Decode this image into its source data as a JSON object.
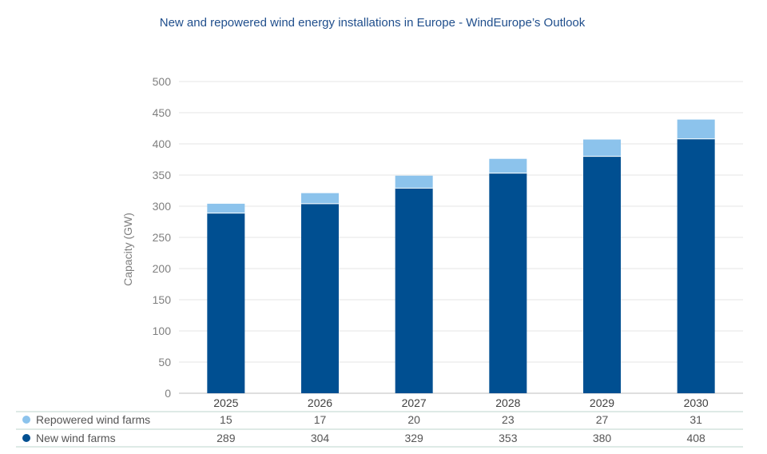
{
  "chart_data": {
    "type": "bar",
    "stacked": true,
    "title": "New and repowered wind energy installations in Europe - WindEurope’s Outlook",
    "xlabel": "",
    "ylabel": "Capacity (GW)",
    "ylim": [
      0,
      500
    ],
    "yticks": [
      0,
      50,
      100,
      150,
      200,
      250,
      300,
      350,
      400,
      450,
      500
    ],
    "ytick_labels": [
      "0",
      "50",
      "100",
      "150",
      "200",
      "250",
      "300",
      "350",
      "400",
      "450",
      "500"
    ],
    "grid": true,
    "categories": [
      "2025",
      "2026",
      "2027",
      "2028",
      "2029",
      "2030"
    ],
    "series": [
      {
        "name": "New wind farms",
        "values": [
          289,
          304,
          329,
          353,
          380,
          408
        ],
        "color": "#004f91"
      },
      {
        "name": "Repowered wind farms",
        "values": [
          15,
          17,
          20,
          23,
          27,
          31
        ],
        "color": "#8cc3ec"
      }
    ],
    "value_labels": {
      "New wind farms": [
        "289",
        "304",
        "329",
        "353",
        "380",
        "408"
      ],
      "Repowered wind farms": [
        "15",
        "17",
        "20",
        "23",
        "27",
        "31"
      ]
    },
    "legend": "data-table-below"
  }
}
